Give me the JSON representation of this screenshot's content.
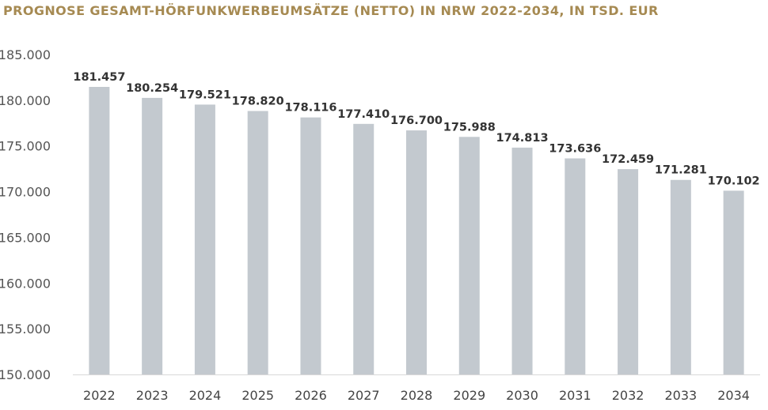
{
  "chart_data": {
    "type": "bar",
    "title": "PROGNOSE GESAMT-HÖRFUNKWERBEUMSÄTZE (NETTO) IN NRW 2022-2034, IN TSD. EUR",
    "xlabel": "",
    "ylabel": "",
    "categories": [
      "2022",
      "2023",
      "2024",
      "2025",
      "2026",
      "2027",
      "2028",
      "2029",
      "2030",
      "2031",
      "2032",
      "2033",
      "2034"
    ],
    "values": [
      181457,
      180254,
      179521,
      178820,
      178116,
      177410,
      176700,
      175988,
      174813,
      173636,
      172459,
      171281,
      170102
    ],
    "value_labels": [
      "181.457",
      "180.254",
      "179.521",
      "178.820",
      "178.116",
      "177.410",
      "176.700",
      "175.988",
      "174.813",
      "173.636",
      "172.459",
      "171.281",
      "170.102"
    ],
    "ylim": [
      150000,
      185000
    ],
    "yticks": [
      150000,
      155000,
      160000,
      165000,
      170000,
      175000,
      180000,
      185000
    ],
    "ytick_labels": [
      "150.000",
      "155.000",
      "160.000",
      "165.000",
      "170.000",
      "175.000",
      "180.000",
      "185.000"
    ],
    "grid": false,
    "legend": "none",
    "colors": {
      "bar": "#c3c9cf",
      "title": "#a68a52"
    }
  }
}
